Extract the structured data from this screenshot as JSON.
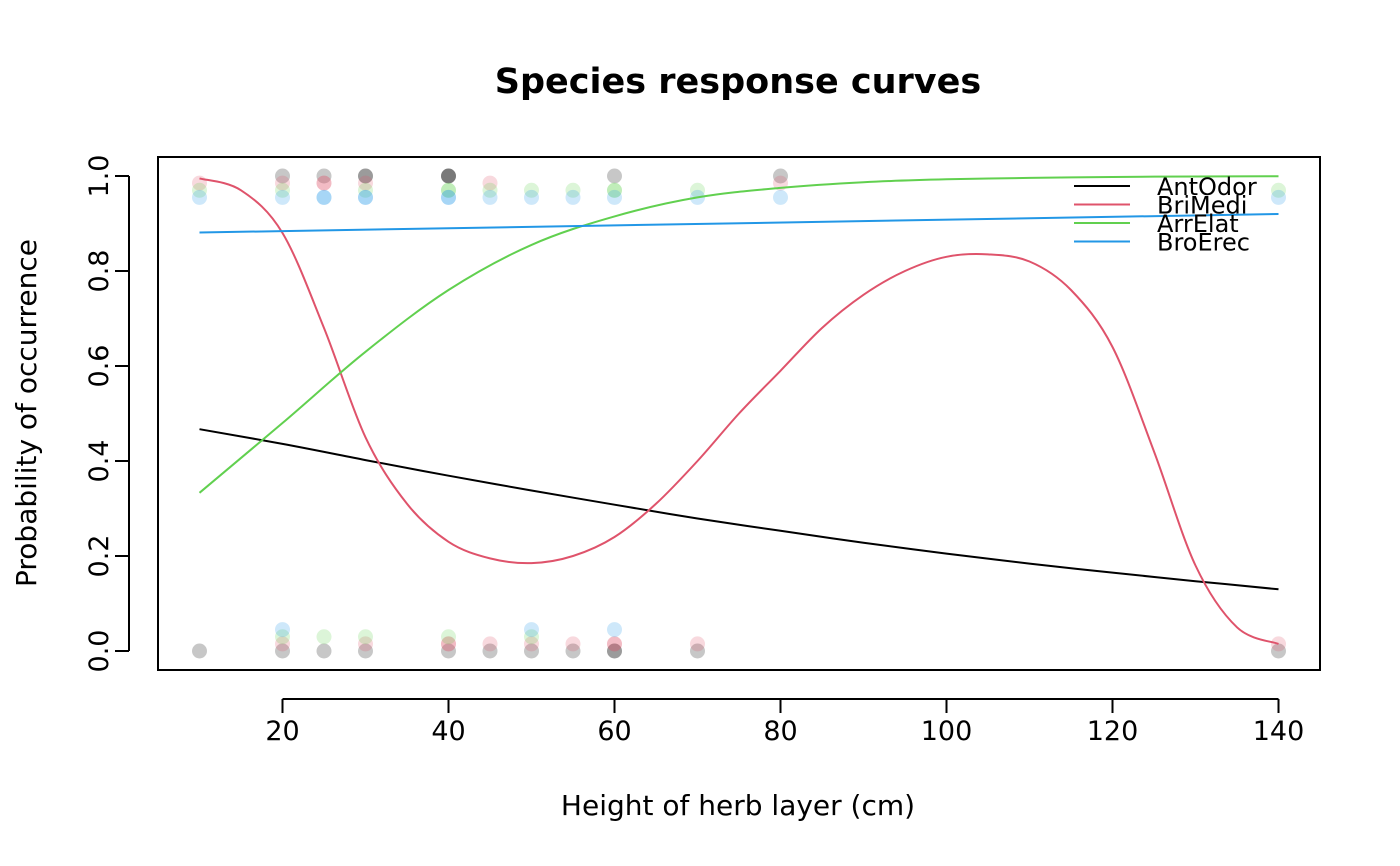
{
  "chart_data": {
    "type": "line",
    "title": "Species response curves",
    "xlabel": "Height of herb layer (cm)",
    "ylabel": "Probability of occurrence",
    "xlim": [
      5,
      145
    ],
    "ylim": [
      -0.04,
      1.04
    ],
    "x_ticks": [
      20,
      40,
      60,
      80,
      100,
      120,
      140
    ],
    "y_ticks": [
      0.0,
      0.2,
      0.4,
      0.6,
      0.8,
      1.0
    ],
    "x_tick_labels": [
      "20",
      "40",
      "60",
      "80",
      "100",
      "120",
      "140"
    ],
    "y_tick_labels": [
      "0.0",
      "0.2",
      "0.4",
      "0.6",
      "0.8",
      "1.0"
    ],
    "grid": false,
    "legend_position": "top-right",
    "series": [
      {
        "name": "AntOdor",
        "color": "#000000",
        "x": [
          10,
          20,
          30,
          40,
          50,
          60,
          70,
          80,
          90,
          100,
          110,
          120,
          130,
          140
        ],
        "y": [
          0.467,
          0.436,
          0.402,
          0.369,
          0.338,
          0.308,
          0.279,
          0.253,
          0.228,
          0.205,
          0.184,
          0.165,
          0.147,
          0.13
        ],
        "points": [
          {
            "x": 10,
            "y": 0
          },
          {
            "x": 20,
            "y": 1
          },
          {
            "x": 20,
            "y": 0
          },
          {
            "x": 25,
            "y": 1
          },
          {
            "x": 25,
            "y": 0
          },
          {
            "x": 30,
            "y": 1
          },
          {
            "x": 30,
            "y": 1
          },
          {
            "x": 30,
            "y": 0
          },
          {
            "x": 40,
            "y": 1
          },
          {
            "x": 40,
            "y": 1
          },
          {
            "x": 40,
            "y": 1
          },
          {
            "x": 40,
            "y": 0
          },
          {
            "x": 45,
            "y": 0
          },
          {
            "x": 50,
            "y": 0
          },
          {
            "x": 55,
            "y": 0
          },
          {
            "x": 60,
            "y": 1
          },
          {
            "x": 60,
            "y": 0
          },
          {
            "x": 60,
            "y": 0
          },
          {
            "x": 70,
            "y": 0
          },
          {
            "x": 80,
            "y": 1
          },
          {
            "x": 140,
            "y": 0
          }
        ]
      },
      {
        "name": "BriMedi",
        "color": "#DF536B",
        "x": [
          10,
          15,
          20,
          25,
          30,
          35,
          40,
          45,
          50,
          55,
          60,
          65,
          70,
          75,
          80,
          85,
          90,
          95,
          100,
          105,
          110,
          115,
          120,
          125,
          130,
          135,
          140
        ],
        "y": [
          0.995,
          0.97,
          0.88,
          0.68,
          0.45,
          0.31,
          0.23,
          0.195,
          0.185,
          0.2,
          0.24,
          0.31,
          0.4,
          0.5,
          0.59,
          0.68,
          0.75,
          0.8,
          0.83,
          0.835,
          0.82,
          0.76,
          0.64,
          0.42,
          0.18,
          0.05,
          0.015
        ],
        "points": [
          {
            "x": 10,
            "y": 0.985
          },
          {
            "x": 20,
            "y": 0.985
          },
          {
            "x": 20,
            "y": 0.015
          },
          {
            "x": 25,
            "y": 0.985
          },
          {
            "x": 25,
            "y": 0.985
          },
          {
            "x": 30,
            "y": 0.985
          },
          {
            "x": 30,
            "y": 0.015
          },
          {
            "x": 40,
            "y": 0.015
          },
          {
            "x": 40,
            "y": 0.015
          },
          {
            "x": 45,
            "y": 0.985
          },
          {
            "x": 45,
            "y": 0.015
          },
          {
            "x": 50,
            "y": 0.015
          },
          {
            "x": 55,
            "y": 0.015
          },
          {
            "x": 60,
            "y": 0.015
          },
          {
            "x": 60,
            "y": 0.015
          },
          {
            "x": 70,
            "y": 0.015
          },
          {
            "x": 80,
            "y": 0.985
          },
          {
            "x": 140,
            "y": 0.015
          }
        ]
      },
      {
        "name": "ArrElat",
        "color": "#61D04F",
        "x": [
          10,
          20,
          30,
          40,
          50,
          60,
          70,
          80,
          90,
          100,
          110,
          120,
          130,
          140
        ],
        "y": [
          0.333,
          0.48,
          0.63,
          0.76,
          0.855,
          0.915,
          0.955,
          0.975,
          0.987,
          0.993,
          0.996,
          0.998,
          0.999,
          0.9995
        ],
        "points": [
          {
            "x": 10,
            "y": 0.97
          },
          {
            "x": 20,
            "y": 0.97
          },
          {
            "x": 20,
            "y": 0.03
          },
          {
            "x": 25,
            "y": 0.03
          },
          {
            "x": 30,
            "y": 0.97
          },
          {
            "x": 30,
            "y": 0.03
          },
          {
            "x": 40,
            "y": 0.97
          },
          {
            "x": 40,
            "y": 0.97
          },
          {
            "x": 40,
            "y": 0.03
          },
          {
            "x": 45,
            "y": 0.97
          },
          {
            "x": 50,
            "y": 0.97
          },
          {
            "x": 50,
            "y": 0.03
          },
          {
            "x": 55,
            "y": 0.97
          },
          {
            "x": 60,
            "y": 0.97
          },
          {
            "x": 60,
            "y": 0.97
          },
          {
            "x": 70,
            "y": 0.97
          },
          {
            "x": 140,
            "y": 0.97
          }
        ]
      },
      {
        "name": "BroErec",
        "color": "#2297E6",
        "x": [
          10,
          140
        ],
        "y": [
          0.881,
          0.92
        ],
        "points": [
          {
            "x": 10,
            "y": 0.955
          },
          {
            "x": 20,
            "y": 0.955
          },
          {
            "x": 20,
            "y": 0.045
          },
          {
            "x": 25,
            "y": 0.955
          },
          {
            "x": 25,
            "y": 0.955
          },
          {
            "x": 30,
            "y": 0.955
          },
          {
            "x": 30,
            "y": 0.955
          },
          {
            "x": 40,
            "y": 0.955
          },
          {
            "x": 40,
            "y": 0.955
          },
          {
            "x": 45,
            "y": 0.955
          },
          {
            "x": 50,
            "y": 0.955
          },
          {
            "x": 50,
            "y": 0.045
          },
          {
            "x": 55,
            "y": 0.955
          },
          {
            "x": 60,
            "y": 0.955
          },
          {
            "x": 60,
            "y": 0.045
          },
          {
            "x": 70,
            "y": 0.955
          },
          {
            "x": 80,
            "y": 0.955
          },
          {
            "x": 140,
            "y": 0.955
          }
        ]
      }
    ]
  }
}
